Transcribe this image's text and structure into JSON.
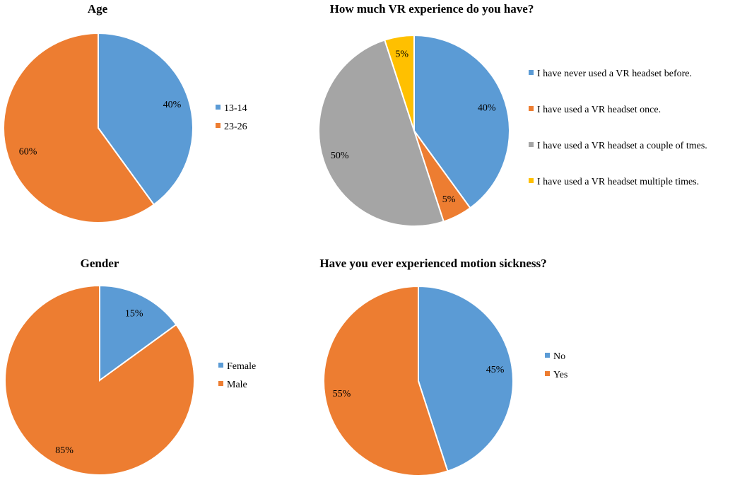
{
  "colors": {
    "blue": "#5B9BD5",
    "orange": "#ED7D31",
    "gray": "#A5A5A5",
    "gold": "#FFC000"
  },
  "chart_data": [
    {
      "type": "pie",
      "title": "Age",
      "categories": [
        "13-14",
        "23-26"
      ],
      "values": [
        40,
        60
      ],
      "labels": [
        "40%",
        "60%"
      ],
      "colors": [
        "#5B9BD5",
        "#ED7D31"
      ],
      "legend": "right"
    },
    {
      "type": "pie",
      "title": "How much VR experience do you have?",
      "categories": [
        "I have never used a VR headset before.",
        "I have used a VR headset once.",
        "I have used a VR headset a couple of tmes.",
        "I have used a VR headset multiple times."
      ],
      "values": [
        40,
        5,
        50,
        5
      ],
      "labels": [
        "40%",
        "5%",
        "50%",
        "5%"
      ],
      "colors": [
        "#5B9BD5",
        "#ED7D31",
        "#A5A5A5",
        "#FFC000"
      ],
      "legend": "right"
    },
    {
      "type": "pie",
      "title": "Gender",
      "categories": [
        "Female",
        "Male"
      ],
      "values": [
        15,
        85
      ],
      "labels": [
        "15%",
        "85%"
      ],
      "colors": [
        "#5B9BD5",
        "#ED7D31"
      ],
      "legend": "right"
    },
    {
      "type": "pie",
      "title": "Have you ever experienced motion sickness?",
      "categories": [
        "No",
        "Yes"
      ],
      "values": [
        45,
        55
      ],
      "labels": [
        "45%",
        "55%"
      ],
      "colors": [
        "#5B9BD5",
        "#ED7D31"
      ],
      "legend": "right"
    }
  ]
}
